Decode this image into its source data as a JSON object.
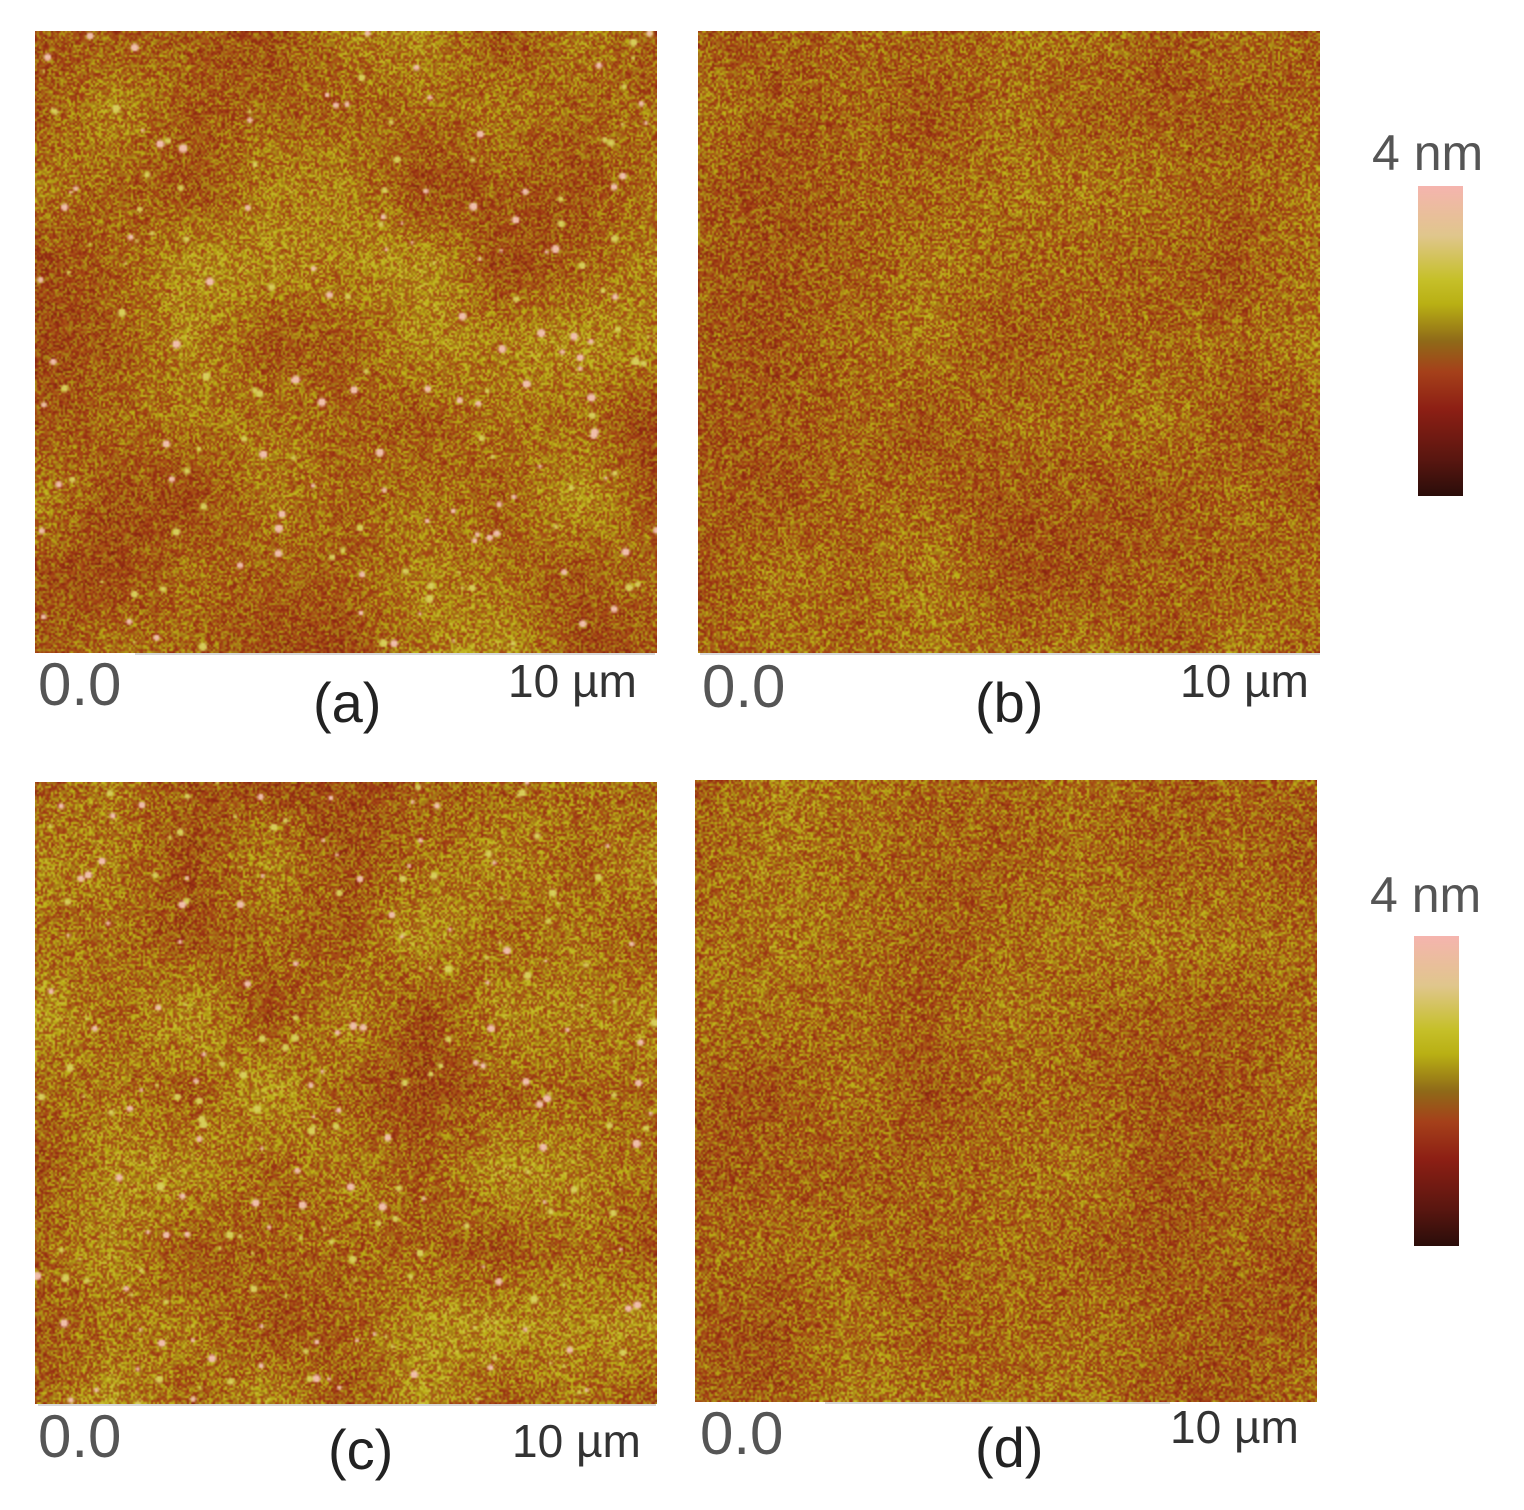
{
  "panels": [
    {
      "id": "a",
      "label": "(a)",
      "origin": "0.0",
      "scale": "10 µm"
    },
    {
      "id": "b",
      "label": "(b)",
      "origin": "0.0",
      "scale": "10 µm"
    },
    {
      "id": "c",
      "label": "(c)",
      "origin": "0.0",
      "scale": "10 µm"
    },
    {
      "id": "d",
      "label": "(d)",
      "origin": "0.0",
      "scale": "10 µm"
    }
  ],
  "colorbars": [
    {
      "max_label": "4 nm"
    },
    {
      "max_label": "4 nm"
    }
  ],
  "colors": {
    "dark": "#2a0d0a",
    "base": "#a04a14",
    "mid": "#b9b014",
    "peak": "#f5b4ae"
  }
}
